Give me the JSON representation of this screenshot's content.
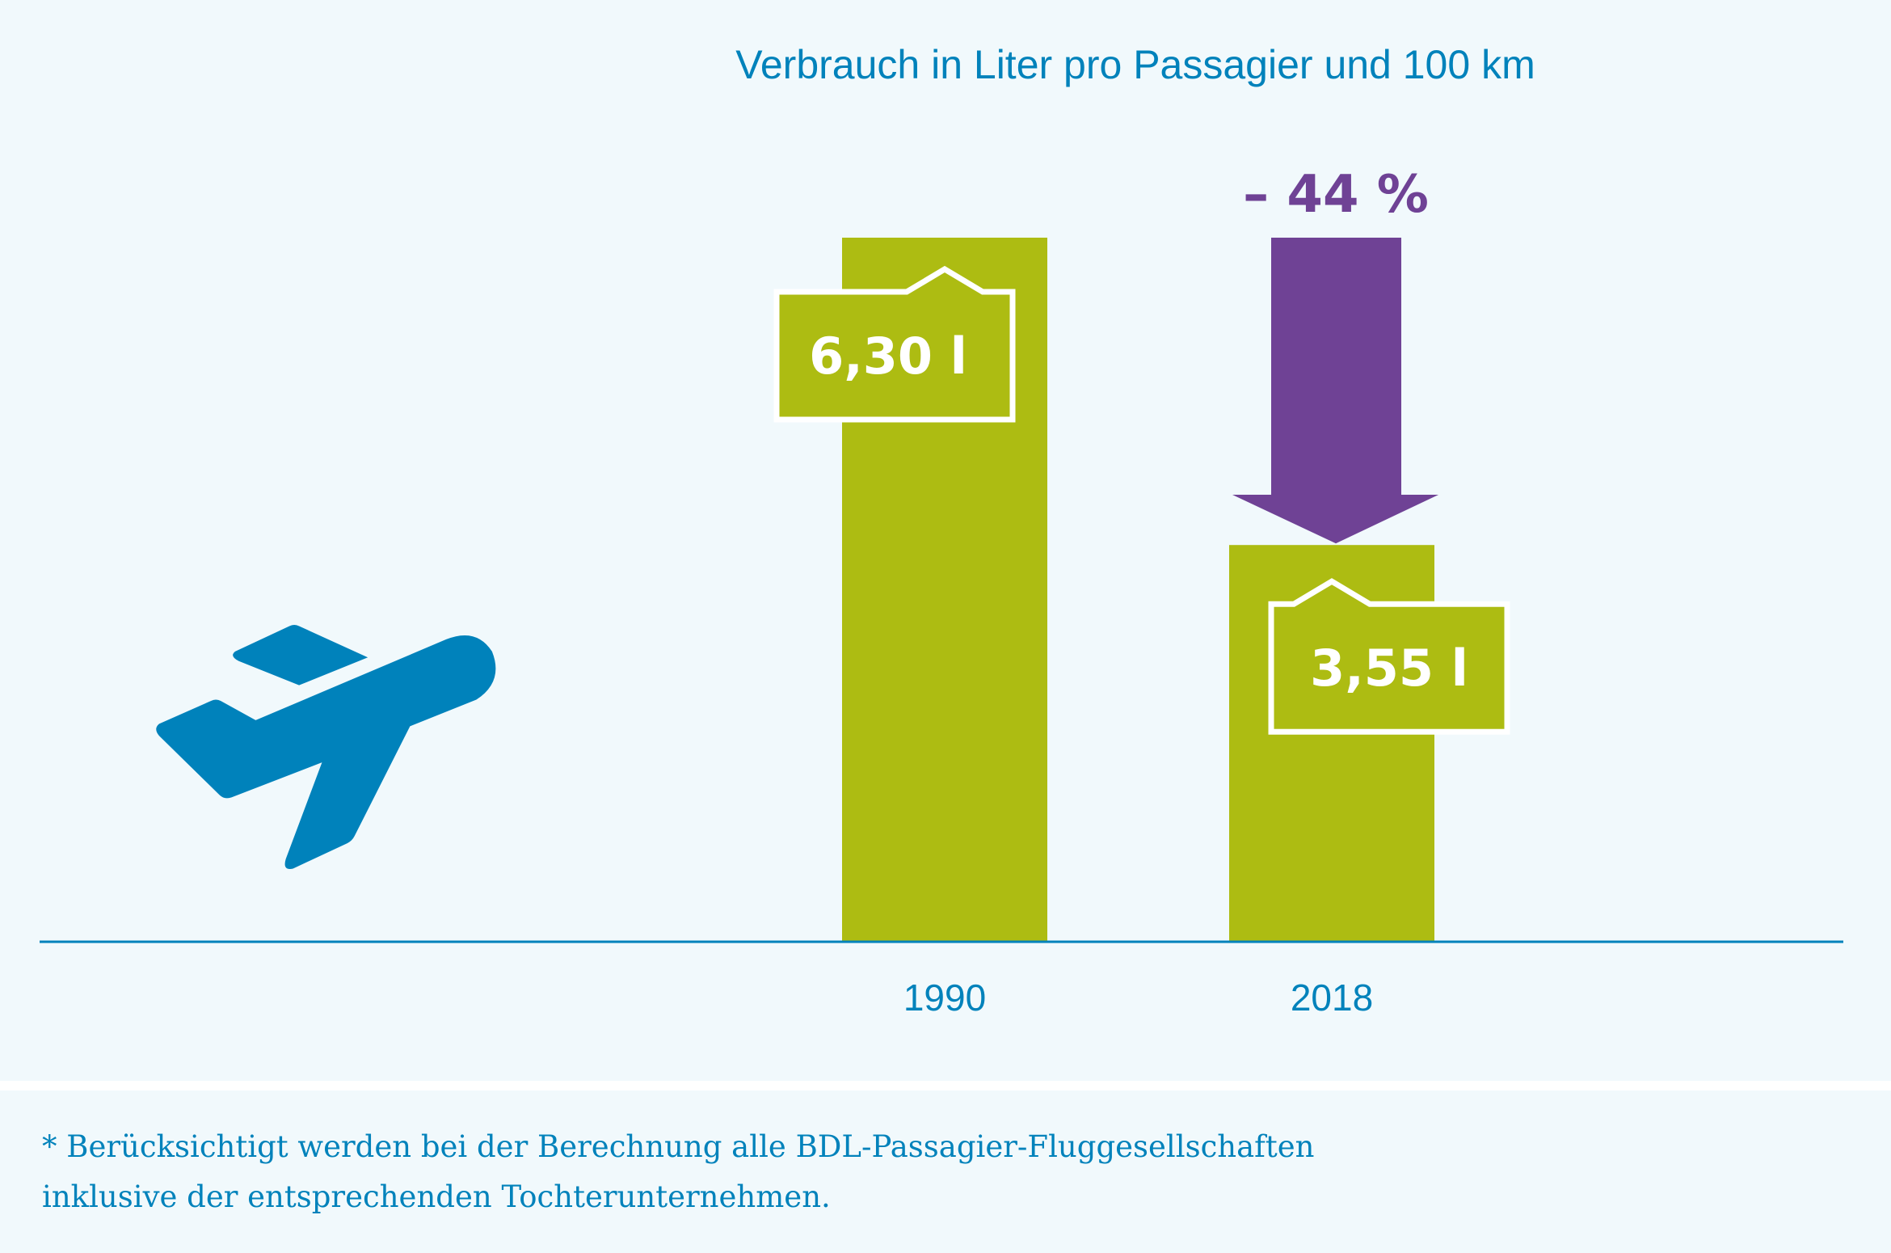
{
  "chart_data": {
    "type": "bar",
    "title": "Verbrauch in Liter pro Passagier und 100 km",
    "categories": [
      "1990",
      "2018"
    ],
    "values": [
      6.3,
      3.55
    ],
    "value_labels": [
      "6,30 l",
      "3,55 l"
    ],
    "annotation": "– 44 %",
    "unit": "l",
    "xlabel": "",
    "ylabel": "",
    "ylim": [
      0,
      6.3
    ],
    "grid": false,
    "colors": {
      "bar": "#adbc12",
      "arrow": "#6f4295",
      "text": "#0082bb"
    }
  },
  "icon": "airplane-takeoff-icon",
  "footnote": {
    "line1": "* Berücksichtigt werden bei der Berechnung alle BDL-Passagier-Fluggesellschaften",
    "line2": "inklusive der entsprechenden Tochterunternehmen."
  }
}
